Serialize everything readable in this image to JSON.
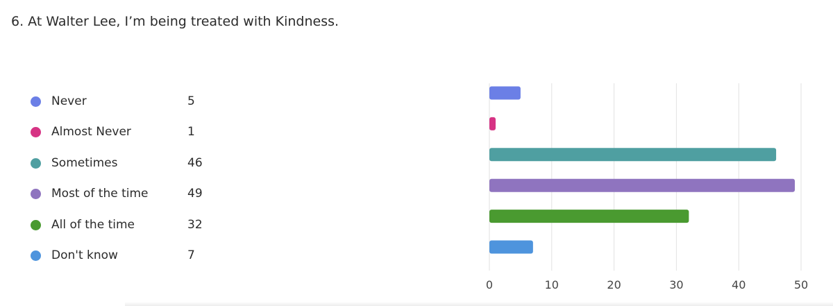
{
  "question": {
    "title": "6. At Walter Lee, I’m being treated with Kindness."
  },
  "legend": [
    {
      "label": "Never",
      "count": "5",
      "color": "#6b7fe6"
    },
    {
      "label": "Almost Never",
      "count": "1",
      "color": "#d63384"
    },
    {
      "label": "Sometimes",
      "count": "46",
      "color": "#4f9fa1"
    },
    {
      "label": "Most of the time",
      "count": "49",
      "color": "#8f74bf"
    },
    {
      "label": "All of the time",
      "count": "32",
      "color": "#4a9a30"
    },
    {
      "label": "Don't know",
      "count": "7",
      "color": "#4e94dd"
    }
  ],
  "chart_data": {
    "type": "bar",
    "orientation": "horizontal",
    "title": "6. At Walter Lee, I’m being treated with Kindness.",
    "categories": [
      "Never",
      "Almost Never",
      "Sometimes",
      "Most of the time",
      "All of the time",
      "Don't know"
    ],
    "values": [
      5,
      1,
      46,
      49,
      32,
      7
    ],
    "colors": [
      "#6b7fe6",
      "#d63384",
      "#4f9fa1",
      "#8f74bf",
      "#4a9a30",
      "#4e94dd"
    ],
    "xlim": [
      0,
      50
    ],
    "xticks": [
      "0",
      "10",
      "20",
      "30",
      "40",
      "50"
    ],
    "grid": true,
    "legend": "left"
  }
}
